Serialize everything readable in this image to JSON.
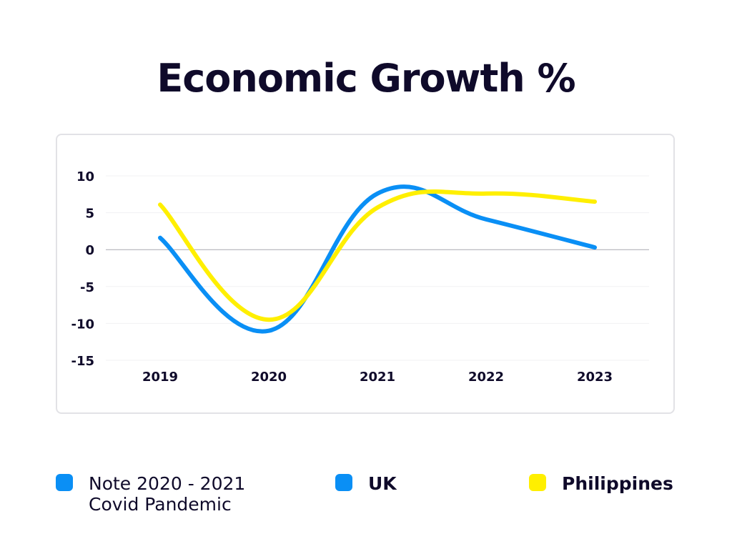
{
  "title": "Economic Growth %",
  "chart_data": {
    "type": "line",
    "title": "Economic Growth %",
    "x": [
      "2019",
      "2020",
      "2021",
      "2022",
      "2023"
    ],
    "series": [
      {
        "name": "UK",
        "values": [
          1.6,
          -11.0,
          7.6,
          4.1,
          0.3
        ],
        "color": "#0a8ff5"
      },
      {
        "name": "Philippines",
        "values": [
          6.1,
          -9.5,
          5.7,
          7.6,
          6.5
        ],
        "color": "#ffef00"
      }
    ],
    "yticks": [
      "10",
      "5",
      "0",
      "-5",
      "-10",
      "-15"
    ],
    "ylim": [
      -15,
      10
    ],
    "grid": true,
    "legend_position": "bottom"
  },
  "legend": {
    "note_line1": "Note 2020 - 2021",
    "note_line2": "Covid Pandemic",
    "note_color": "#0a8ff5",
    "uk_label": "UK",
    "uk_color": "#0a8ff5",
    "ph_label": "Philippines",
    "ph_color": "#ffef00"
  }
}
